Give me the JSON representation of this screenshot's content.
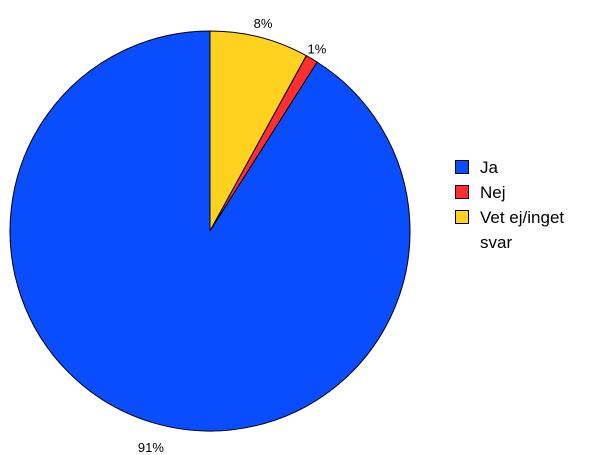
{
  "chart_data": {
    "type": "pie",
    "title": "",
    "categories": [
      "Ja",
      "Nej",
      "Vet ej/inget svar"
    ],
    "values": [
      91,
      1,
      8
    ],
    "value_labels": [
      "91%",
      "1%",
      "8%"
    ],
    "colors": [
      "#0a4dff",
      "#ff2f2f",
      "#ffd21f"
    ],
    "start_at": "top",
    "direction": "counterclockwise",
    "legend_position": "right",
    "legend": {
      "items": [
        {
          "label": "Ja",
          "color": "#0a4dff"
        },
        {
          "label": "Nej",
          "color": "#ff2f2f"
        },
        {
          "label": "Vet ej/inget svar",
          "color": "#ffd21f"
        }
      ]
    }
  }
}
